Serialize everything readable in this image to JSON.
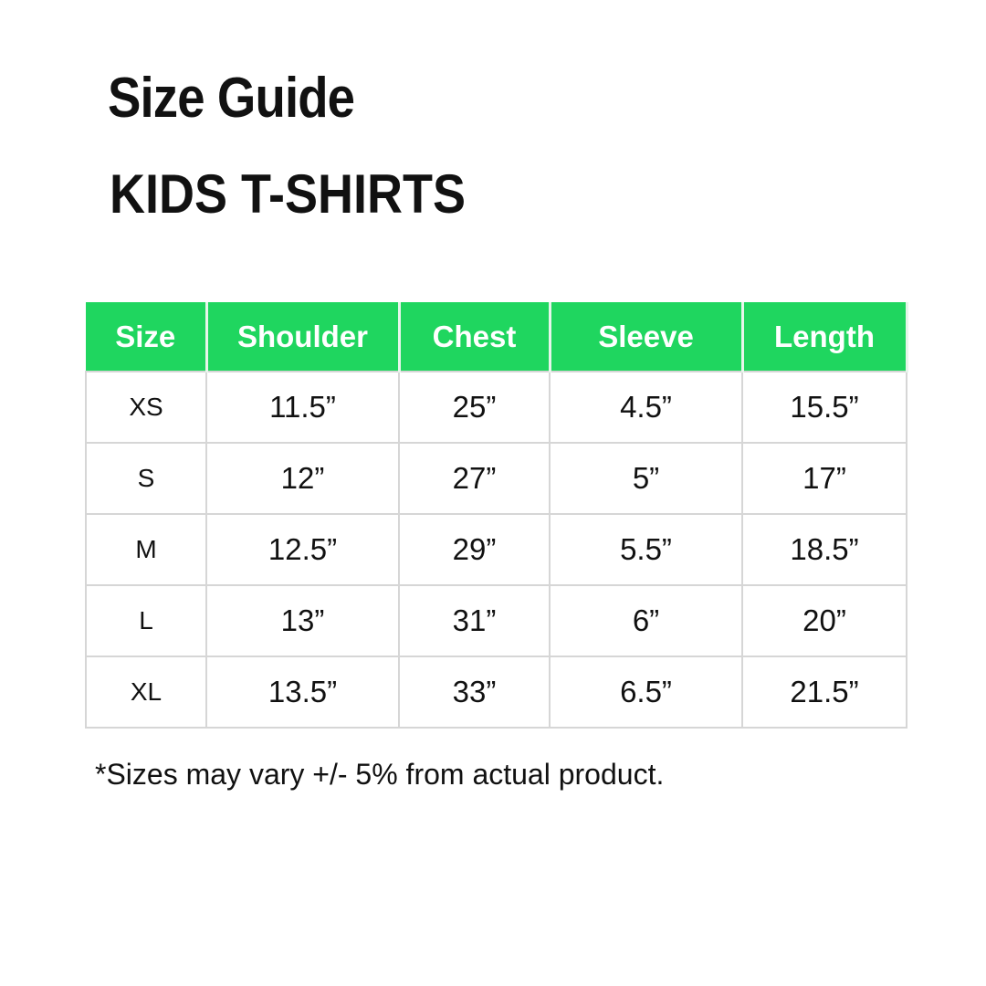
{
  "title": "Size Guide",
  "subtitle": "KIDS T-SHIRTS",
  "table": {
    "headers": [
      "Size",
      "Shoulder",
      "Chest",
      "Sleeve",
      "Length"
    ],
    "rows": [
      [
        "XS",
        "11.5”",
        "25”",
        "4.5”",
        "15.5”"
      ],
      [
        "S",
        "12”",
        "27”",
        "5”",
        "17”"
      ],
      [
        "M",
        "12.5”",
        "29”",
        "5.5”",
        "18.5”"
      ],
      [
        "L",
        "13”",
        "31”",
        "6”",
        "20”"
      ],
      [
        "XL",
        "13.5”",
        "33”",
        "6.5”",
        "21.5”"
      ]
    ]
  },
  "note": "*Sizes may vary +/- 5% from actual product.",
  "colors": {
    "header_bg": "#1fd65f",
    "header_text": "#ffffff"
  }
}
